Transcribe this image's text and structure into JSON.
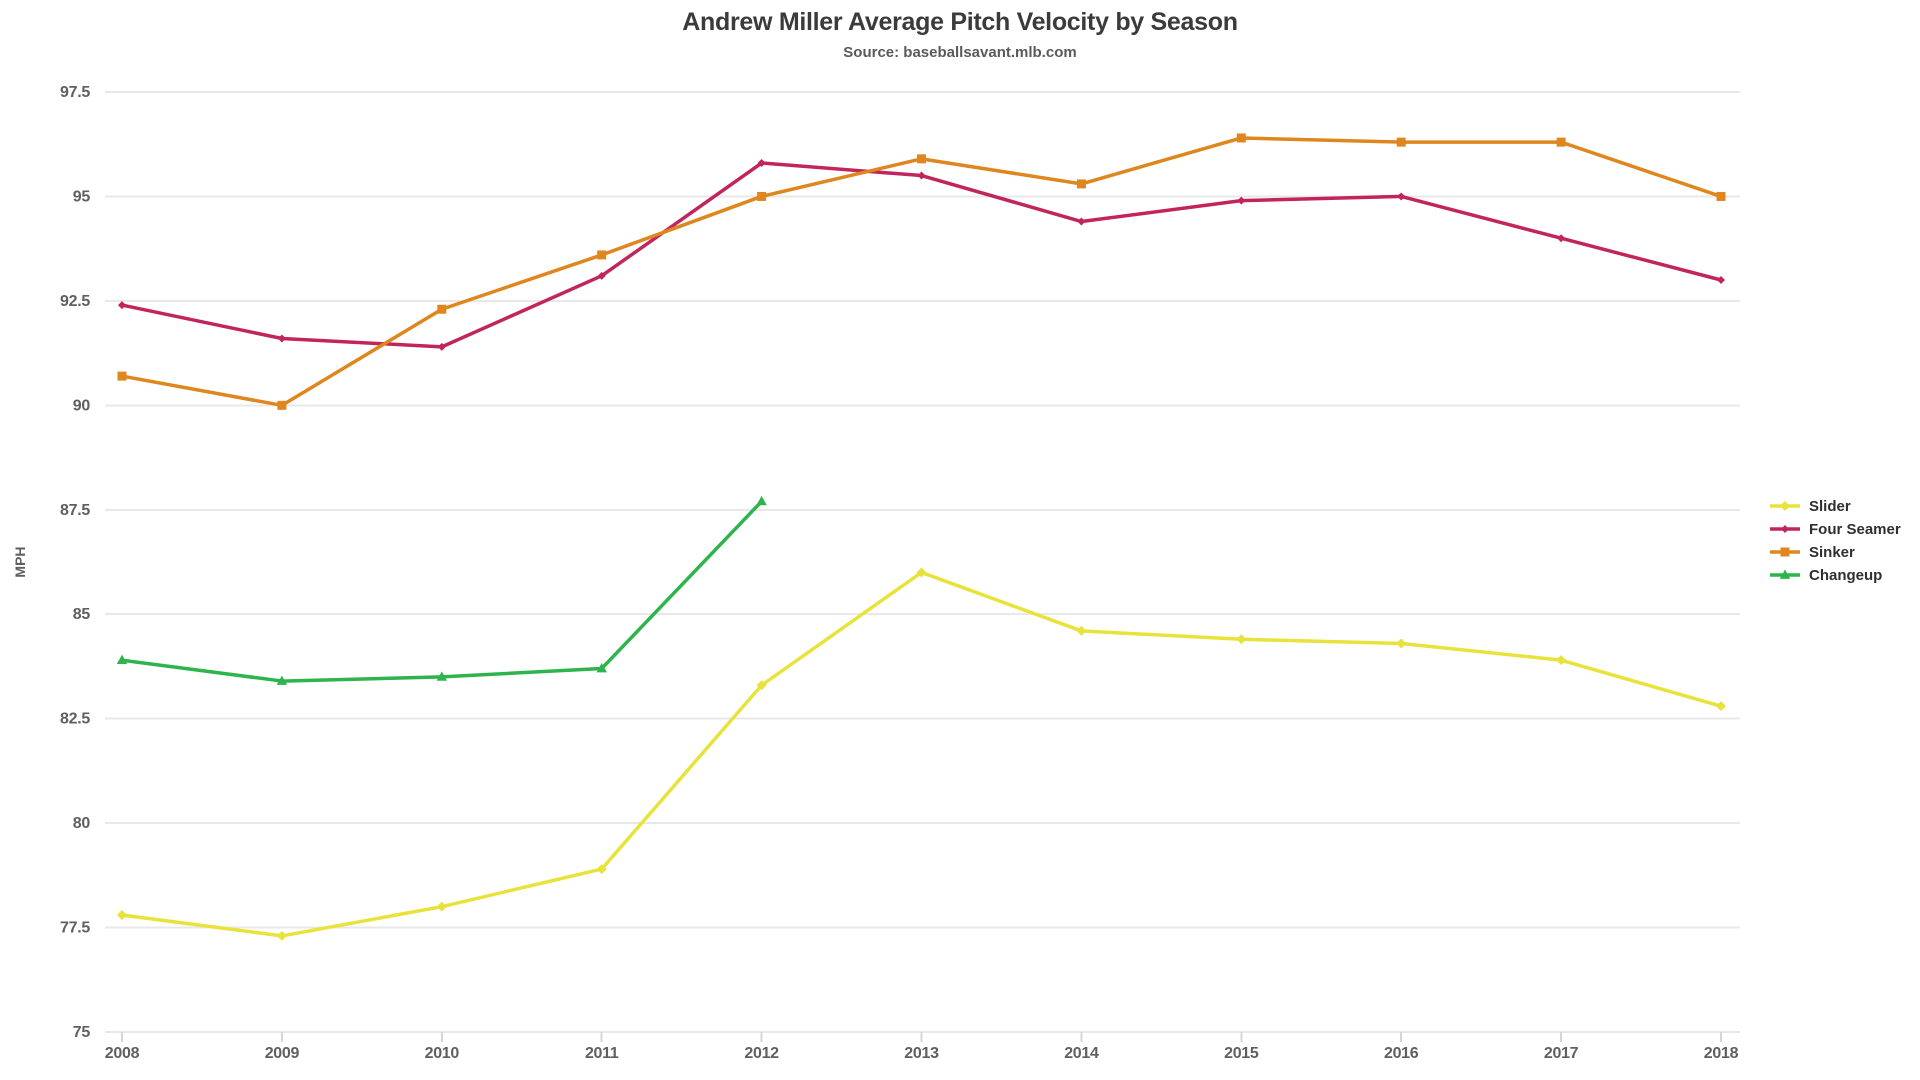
{
  "header": {
    "title": "Andrew Miller Average Pitch Velocity by Season",
    "subtitle": "Source: baseballsavant.mlb.com"
  },
  "chart_data": {
    "type": "line",
    "title": "Andrew Miller Average Pitch Velocity by Season",
    "subtitle": "Source: baseballsavant.mlb.com",
    "xlabel": "",
    "ylabel": "MPH",
    "xlim": [
      2008,
      2018
    ],
    "ylim": [
      75,
      97.5
    ],
    "grid": true,
    "grid_color": "#e8e8e8",
    "tick_stub_color": "#d6d6d6",
    "tick_text_color": "#5f5f5f",
    "legend_position": "right",
    "x_ticks": [
      2008,
      2009,
      2010,
      2011,
      2012,
      2013,
      2014,
      2015,
      2016,
      2017,
      2018
    ],
    "x_tick_labels": [
      "2008",
      "2009",
      "2010",
      "2011",
      "2012",
      "2013",
      "2014",
      "2015",
      "2016",
      "2017",
      "2018"
    ],
    "y_tick_labels": [
      "97.5",
      "95",
      "92.5",
      "90",
      "87.5",
      "85",
      "82.5",
      "80",
      "77.5",
      "75"
    ],
    "series": [
      {
        "name": "Slider",
        "color": "#e8e33b",
        "marker": "diamond",
        "marker_size": 5,
        "x": [
          2008,
          2009,
          2010,
          2011,
          2012,
          2013,
          2014,
          2015,
          2016,
          2017,
          2018
        ],
        "values": [
          77.8,
          77.3,
          78.0,
          78.9,
          83.3,
          86.0,
          84.6,
          84.4,
          84.3,
          83.9,
          82.8
        ]
      },
      {
        "name": "Four Seamer",
        "color": "#c2255c",
        "marker": "diamond",
        "marker_size": 4,
        "x": [
          2008,
          2009,
          2010,
          2011,
          2012,
          2013,
          2014,
          2015,
          2016,
          2017,
          2018
        ],
        "values": [
          92.4,
          91.6,
          91.4,
          93.1,
          95.8,
          95.5,
          94.4,
          94.9,
          95.0,
          94.0,
          93.0
        ]
      },
      {
        "name": "Sinker",
        "color": "#df861e",
        "marker": "square",
        "marker_size": 4.5,
        "x": [
          2008,
          2009,
          2010,
          2011,
          2012,
          2013,
          2014,
          2015,
          2016,
          2017,
          2018
        ],
        "values": [
          90.7,
          90.0,
          92.3,
          93.6,
          95.0,
          95.9,
          95.3,
          96.4,
          96.3,
          96.3,
          95.0
        ]
      },
      {
        "name": "Changeup",
        "color": "#2eb44c",
        "marker": "triangle",
        "marker_size": 5.5,
        "x": [
          2008,
          2009,
          2010,
          2011,
          2012
        ],
        "values": [
          83.9,
          83.4,
          83.5,
          83.7,
          87.7
        ]
      }
    ]
  }
}
